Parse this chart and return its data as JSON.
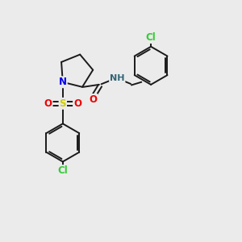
{
  "background_color": "#ebebeb",
  "bond_color": "#1a1a1a",
  "atom_colors": {
    "N": "#0000ee",
    "O": "#ee0000",
    "S": "#cccc00",
    "Cl": "#33cc33",
    "C": "#1a1a1a",
    "H": "#336677",
    "NH": "#336677"
  },
  "figsize": [
    3.0,
    3.0
  ],
  "dpi": 100,
  "lw": 1.4,
  "font_size": 8.5
}
